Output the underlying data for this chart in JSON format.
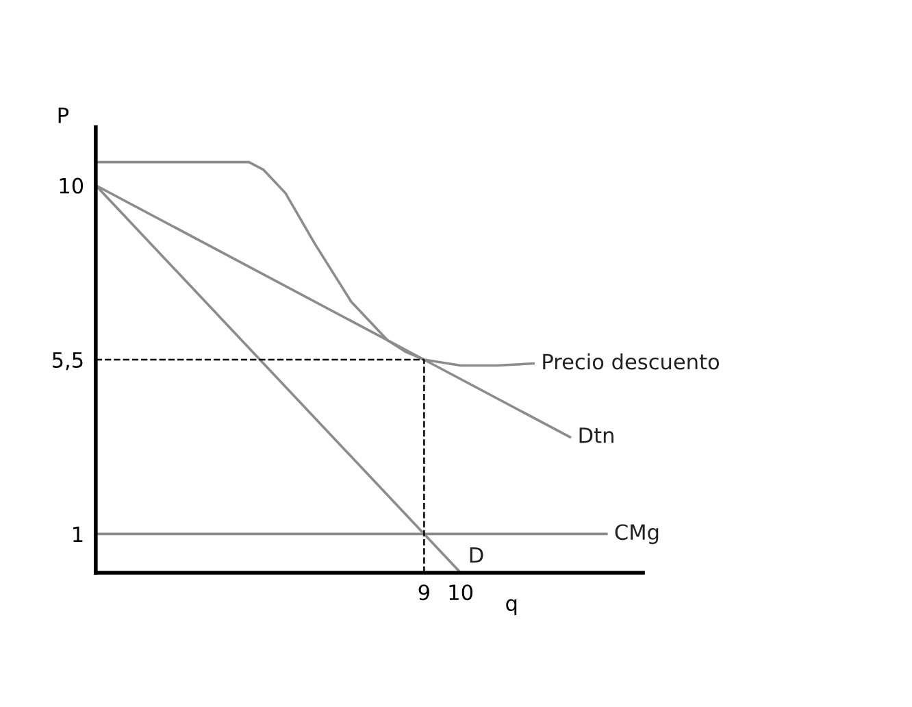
{
  "chart_data": {
    "type": "line",
    "xlabel": "q",
    "ylabel": "P",
    "xlim": [
      0,
      15
    ],
    "ylim": [
      0,
      11.5
    ],
    "xticks": [
      9,
      10
    ],
    "yticks": [
      1,
      {
        "value": 5.5,
        "label": "5,5"
      },
      10
    ],
    "series": [
      {
        "name": "Precio descuento",
        "color": "#8c8c8c",
        "x": [
          0,
          4.2,
          4.6,
          5.2,
          6,
          7,
          8,
          8.5,
          9,
          10,
          11,
          12
        ],
        "values": [
          10.6,
          10.6,
          10.4,
          9.8,
          8.5,
          7,
          6,
          5.7,
          5.5,
          5.35,
          5.35,
          5.4
        ]
      },
      {
        "name": "Dtn",
        "color": "#8c8c8c",
        "x": [
          0,
          9,
          13
        ],
        "values": [
          10,
          5.5,
          3.5
        ]
      },
      {
        "name": "CMg",
        "color": "#8c8c8c",
        "x": [
          0,
          14
        ],
        "values": [
          1,
          1
        ]
      },
      {
        "name": "D",
        "color": "#8c8c8c",
        "x": [
          0,
          10
        ],
        "values": [
          10,
          0
        ]
      }
    ],
    "ref_lines": [
      {
        "axis": "y",
        "value": 5.5,
        "color": "#000000",
        "line_style": "dashed"
      },
      {
        "axis": "x",
        "value": 9,
        "color": "#000000",
        "line_style": "dashed"
      }
    ],
    "grid": false,
    "marker": "none",
    "line_style": "solid"
  }
}
